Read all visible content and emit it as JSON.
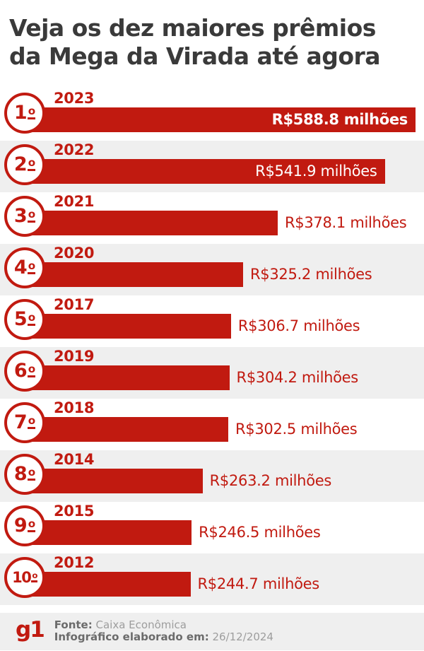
{
  "title": {
    "line1": "Veja os dez maiores prêmios",
    "line2": "da Mega da Virada até agora"
  },
  "chart_data": {
    "type": "bar",
    "orientation": "horizontal",
    "title": "Veja os dez maiores prêmios da Mega da Virada até agora",
    "unit": "R$ milhões",
    "value_axis_max": 588.8,
    "categories": [
      "2023",
      "2022",
      "2021",
      "2020",
      "2017",
      "2019",
      "2018",
      "2014",
      "2015",
      "2012"
    ],
    "values": [
      588.8,
      541.9,
      378.1,
      325.2,
      306.7,
      304.2,
      302.5,
      263.2,
      246.5,
      244.7
    ],
    "rows": [
      {
        "rank": "1º",
        "year": "2023",
        "value": 588.8,
        "label": "R$588.8 milhões",
        "value_inside_bar": true,
        "value_bold": true
      },
      {
        "rank": "2º",
        "year": "2022",
        "value": 541.9,
        "label": "R$541.9 milhões",
        "value_inside_bar": true,
        "value_bold": false
      },
      {
        "rank": "3º",
        "year": "2021",
        "value": 378.1,
        "label": "R$378.1 milhões",
        "value_inside_bar": false,
        "value_bold": false
      },
      {
        "rank": "4º",
        "year": "2020",
        "value": 325.2,
        "label": "R$325.2 milhões",
        "value_inside_bar": false,
        "value_bold": false
      },
      {
        "rank": "5º",
        "year": "2017",
        "value": 306.7,
        "label": "R$306.7 milhões",
        "value_inside_bar": false,
        "value_bold": false
      },
      {
        "rank": "6º",
        "year": "2019",
        "value": 304.2,
        "label": "R$304.2 milhões",
        "value_inside_bar": false,
        "value_bold": false
      },
      {
        "rank": "7º",
        "year": "2018",
        "value": 302.5,
        "label": "R$302.5 milhões",
        "value_inside_bar": false,
        "value_bold": false
      },
      {
        "rank": "8º",
        "year": "2014",
        "value": 263.2,
        "label": "R$263.2 milhões",
        "value_inside_bar": false,
        "value_bold": false
      },
      {
        "rank": "9º",
        "year": "2015",
        "value": 246.5,
        "label": "R$246.5 milhões",
        "value_inside_bar": false,
        "value_bold": false
      },
      {
        "rank": "10º",
        "year": "2012",
        "value": 244.7,
        "label": "R$244.7 milhões",
        "value_inside_bar": false,
        "value_bold": false
      }
    ],
    "legend": "none",
    "grid": "off"
  },
  "footer": {
    "logo": "g1",
    "source_label": "Fonte:",
    "source_value": "Caixa Econômica",
    "date_label": "Infográfico elaborado em:",
    "date_value": "26/12/2024"
  },
  "colors": {
    "accent_red": "#c11a10",
    "row_band_gray": "#efefef",
    "title_gray": "#3a3a3a",
    "footer_label_gray": "#6b6b6b",
    "footer_value_gray": "#9d9d9d"
  }
}
